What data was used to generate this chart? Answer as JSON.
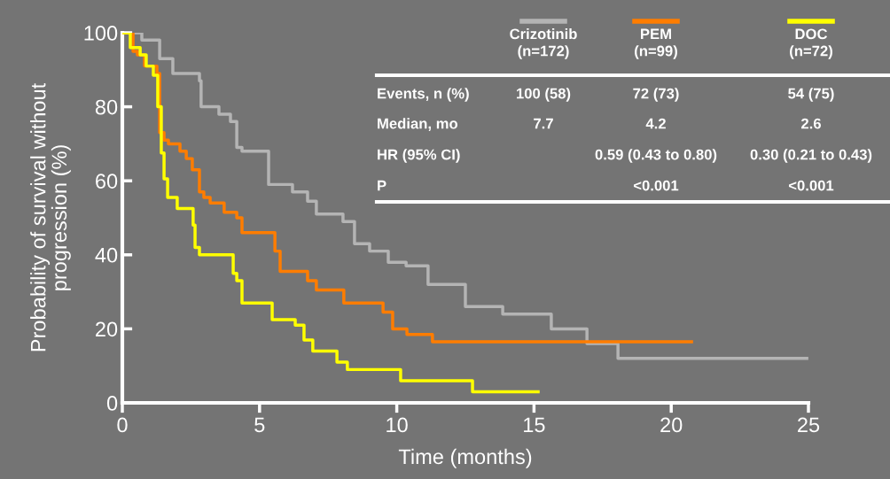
{
  "chart_data": {
    "type": "step",
    "xlabel": "Time (months)",
    "ylabel": "Probability of survival without\nprogression (%)",
    "xlim": [
      0,
      25
    ],
    "ylim": [
      0,
      100
    ],
    "xticks": [
      0,
      5,
      10,
      15,
      20,
      25
    ],
    "yticks": [
      0,
      20,
      40,
      60,
      80,
      100
    ],
    "grid": false,
    "legend": "top right",
    "series": [
      {
        "name": "Crizotinib\n(n=172)",
        "color": "#b4b4b4",
        "x": [
          0,
          0.71,
          1.36,
          1.84,
          2.81,
          2.87,
          3.52,
          3.94,
          4.17,
          4.36,
          5.33,
          6.2,
          6.75,
          7.07,
          8.04,
          8.46,
          9.01,
          9.69,
          10.34,
          11.14,
          12.5,
          13.86,
          15.63,
          16.93,
          18.06,
          24.94
        ],
        "values": [
          100,
          98,
          93,
          89,
          87,
          80,
          78,
          76,
          69,
          68,
          59,
          57,
          54.5,
          51,
          49,
          43,
          41,
          38,
          37,
          32,
          26,
          24,
          20,
          16,
          12,
          12
        ]
      },
      {
        "name": "PEM\n(n=99)",
        "color": "#ff7d00",
        "x": [
          0,
          0.39,
          0.55,
          0.81,
          1.26,
          1.36,
          1.52,
          1.68,
          2.1,
          2.33,
          2.55,
          2.81,
          2.97,
          3.2,
          3.71,
          4.17,
          4.36,
          5.56,
          5.75,
          6.75,
          7.07,
          8.07,
          9.5,
          9.85,
          10.37,
          11.3,
          20.74
        ],
        "values": [
          100,
          95,
          94,
          91,
          89,
          73,
          71,
          70,
          68,
          66,
          63,
          57,
          55.5,
          54,
          51.5,
          50,
          46,
          41,
          35.5,
          33,
          30.5,
          27,
          24.5,
          20,
          18.5,
          16.5,
          16.5
        ]
      },
      {
        "name": "DOC\n(n=72)",
        "color": "#ffff00",
        "x": [
          0,
          0.29,
          0.65,
          0.87,
          1.13,
          1.29,
          1.42,
          1.52,
          1.65,
          2.0,
          2.58,
          2.65,
          2.81,
          4.04,
          4.17,
          4.36,
          5.46,
          6.3,
          6.62,
          6.94,
          7.82,
          8.2,
          10.14,
          12.76,
          15.15
        ],
        "values": [
          100,
          96,
          94,
          91,
          88.5,
          80,
          67.5,
          60.5,
          55.5,
          52.5,
          48,
          42,
          40,
          35,
          33,
          27,
          22.5,
          21,
          17,
          14,
          11,
          9,
          6,
          3,
          3
        ]
      }
    ],
    "annotations": [
      "Events, n (%)",
      "100 (58)",
      "72 (73)",
      "54 (75)",
      "Median, mo",
      "7.7",
      "4.2",
      "2.6",
      "HR (95% CI)",
      "0.59 (0.43 to 0.80)",
      "0.30 (0.21 to 0.43)",
      "P",
      "<0.001",
      "<0.001"
    ]
  }
}
